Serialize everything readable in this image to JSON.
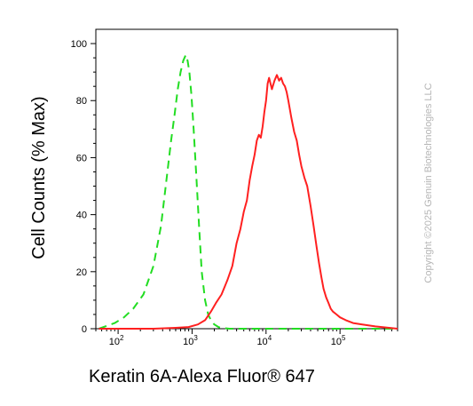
{
  "chart_data": {
    "type": "line",
    "xlabel": "Keratin 6A-Alexa Fluor® 647",
    "ylabel": "Cell Counts (% Max)",
    "x_scale": "log",
    "xlim": [
      50,
      600000
    ],
    "ylim": [
      0,
      105
    ],
    "x_ticks": [
      100,
      1000,
      10000,
      100000
    ],
    "x_tick_labels": [
      {
        "base": "10",
        "exp": "2"
      },
      {
        "base": "10",
        "exp": "3"
      },
      {
        "base": "10",
        "exp": "4"
      },
      {
        "base": "10",
        "exp": "5"
      }
    ],
    "y_ticks": [
      0,
      20,
      40,
      60,
      80,
      100
    ],
    "y_tick_labels": [
      "0",
      "20",
      "40",
      "60",
      "80",
      "100"
    ],
    "grid": false,
    "legend": null,
    "series": [
      {
        "color": "#22dd22",
        "style": "dashed",
        "x": [
          55,
          70,
          90,
          120,
          160,
          220,
          300,
          380,
          450,
          520,
          580,
          640,
          700,
          760,
          820,
          870,
          920,
          980,
          1050,
          1150,
          1250,
          1350,
          1500,
          1650,
          1800,
          2000,
          2300,
          2700,
          3200,
          4000,
          6000,
          10000,
          30000,
          100000,
          600000
        ],
        "y": [
          0,
          1,
          2,
          4,
          7,
          12,
          22,
          36,
          52,
          66,
          75,
          84,
          90,
          94,
          96,
          94,
          90,
          82,
          70,
          52,
          35,
          20,
          10,
          5,
          3,
          1.5,
          0.5,
          0.2,
          0,
          0,
          0,
          0,
          0,
          0,
          0
        ]
      },
      {
        "color": "#ff2020",
        "style": "solid",
        "x": [
          55,
          300,
          600,
          900,
          1200,
          1500,
          1800,
          2100,
          2500,
          3000,
          3500,
          4000,
          4500,
          5000,
          5500,
          6000,
          6500,
          7000,
          7500,
          8000,
          8500,
          9000,
          9500,
          10000,
          10500,
          11000,
          12000,
          13000,
          14000,
          15000,
          16000,
          17000,
          18000,
          19000,
          20000,
          22000,
          24000,
          26000,
          28000,
          30000,
          33000,
          36000,
          40000,
          44000,
          48000,
          52000,
          56000,
          60000,
          65000,
          70000,
          75000,
          80000,
          90000,
          100000,
          120000,
          150000,
          200000,
          300000,
          600000
        ],
        "y": [
          0,
          0,
          0.3,
          0.6,
          1.5,
          3,
          6,
          9,
          12,
          17,
          22,
          30,
          35,
          41,
          45,
          52,
          57,
          61,
          66,
          68,
          67,
          71,
          76,
          80,
          86,
          88,
          84,
          87,
          89,
          87,
          88,
          86,
          85,
          83,
          80,
          74,
          69,
          66,
          61,
          57,
          53,
          50,
          43,
          36,
          29,
          23,
          18,
          14,
          11,
          9,
          7,
          6,
          5,
          4,
          3,
          2,
          1.5,
          0.8,
          0
        ]
      }
    ]
  },
  "watermark": "Copyright ©2025 Genuin Biotechnologies LLC"
}
